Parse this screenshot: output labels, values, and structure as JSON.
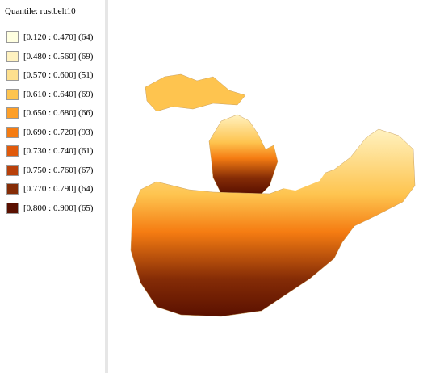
{
  "legend": {
    "title": "Quantile: rustbelt10",
    "entries": [
      {
        "label": "[0.120 : 0.470] (64)",
        "color": "#ffffe0"
      },
      {
        "label": "[0.480 : 0.560] (69)",
        "color": "#fff2c0"
      },
      {
        "label": "[0.570 : 0.600] (51)",
        "color": "#fee08e"
      },
      {
        "label": "[0.610 : 0.640] (69)",
        "color": "#fec44f"
      },
      {
        "label": "[0.650 : 0.680] (66)",
        "color": "#fd9f28"
      },
      {
        "label": "[0.690 : 0.720] (93)",
        "color": "#f57c12"
      },
      {
        "label": "[0.730 : 0.740] (61)",
        "color": "#e05a0c"
      },
      {
        "label": "[0.750 : 0.760] (67)",
        "color": "#b8400a"
      },
      {
        "label": "[0.770 : 0.790] (64)",
        "color": "#852c06"
      },
      {
        "label": "[0.800 : 0.900] (65)",
        "color": "#5a1000"
      }
    ]
  }
}
